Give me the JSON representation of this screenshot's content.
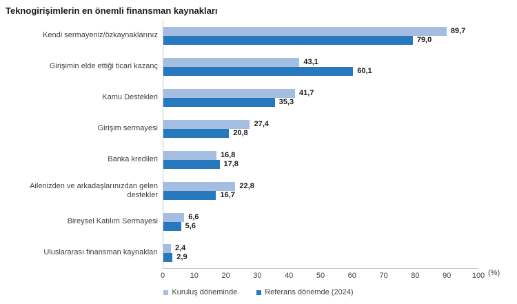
{
  "title": "Teknogirişimlerin en önemli finansman kaynakları",
  "chart_data": {
    "type": "bar",
    "orientation": "horizontal",
    "categories": [
      "Kendi sermayeniz/özkaynaklarınız",
      "Girişimin elde ettiği ticari kazanç",
      "Kamu Destekleri",
      "Girişim sermayesi",
      "Banka kredileri",
      "Ailenizden ve arkadaşlarınızdan gelen destekler",
      "Bireysel Katılım Sermayesi",
      "Uluslararası finansman kaynakları"
    ],
    "series": [
      {
        "name": "Kuruluş döneminde",
        "color": "#a4bee1",
        "values": [
          89.7,
          43.1,
          41.7,
          27.4,
          16.8,
          22.8,
          6.6,
          2.4
        ]
      },
      {
        "name": "Referans dönemde (2024)",
        "color": "#2878be",
        "values": [
          79.0,
          60.1,
          35.3,
          20.8,
          17.8,
          16.7,
          5.6,
          2.9
        ]
      }
    ],
    "xlim": [
      0,
      100
    ],
    "xticks": [
      0,
      10,
      20,
      30,
      40,
      50,
      60,
      70,
      80,
      90,
      100
    ],
    "unit_label": "(%)",
    "decimal_separator": ",",
    "legend_position": "bottom",
    "grid": false
  },
  "colors": {
    "axis_line": "#c9c9c9",
    "category_text": "#404040",
    "value_text": "#1a1a1a",
    "title_text": "#1a1a1a"
  }
}
